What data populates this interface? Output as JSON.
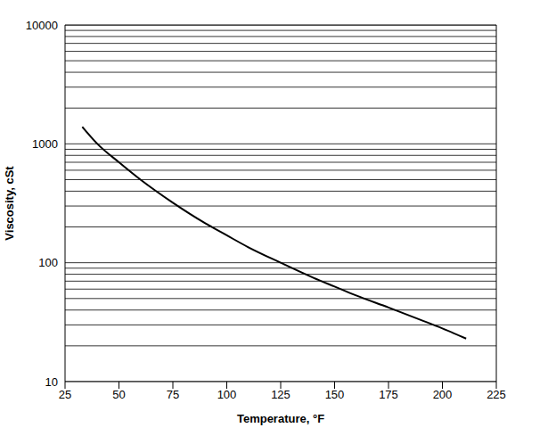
{
  "chart_data": {
    "type": "line",
    "x_label": "Temperature, °F",
    "y_label": "Viscosity, cSt",
    "x": [
      33,
      40,
      50,
      60,
      75,
      90,
      100,
      110,
      125,
      140,
      150,
      160,
      175,
      190,
      200,
      211
    ],
    "values": [
      1390,
      1000,
      700,
      500,
      320,
      215,
      170,
      135,
      100,
      75,
      63,
      53,
      42,
      33,
      28,
      23
    ],
    "color": "#000000",
    "xlim": [
      25,
      225
    ],
    "xticks": [
      25,
      50,
      75,
      100,
      125,
      150,
      175,
      200,
      225
    ],
    "ylim": [
      10,
      10000
    ],
    "yticks": [
      10,
      100,
      1000,
      10000
    ],
    "log": "y",
    "grid": true
  }
}
